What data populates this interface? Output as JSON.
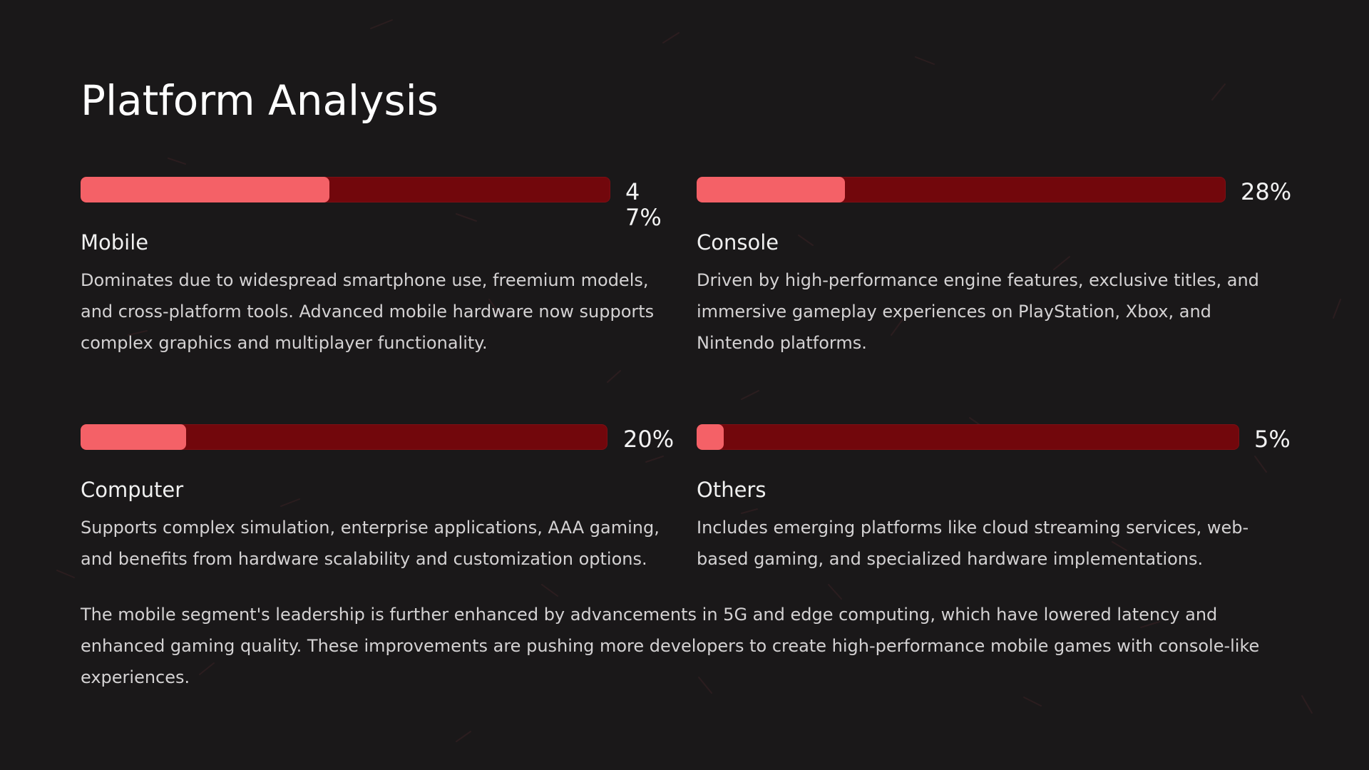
{
  "title": "Platform Analysis",
  "colors": {
    "background": "#1a1819",
    "bar_track": "#72070c",
    "bar_fill": "#f46167",
    "text_primary": "#ffffff",
    "text_secondary": "#d4d2d3"
  },
  "platforms": [
    {
      "name": "Mobile",
      "percent_label": "47%",
      "share": 0.47,
      "description": "Dominates due to widespread smartphone use, freemium models, and cross-platform tools. Advanced mobile hardware now supports complex graphics and multiplayer functionality."
    },
    {
      "name": "Console",
      "percent_label": "28%",
      "share": 0.28,
      "description": "Driven by high-performance engine features, exclusive titles, and immersive gameplay experiences on PlayStation, Xbox, and Nintendo platforms."
    },
    {
      "name": "Computer",
      "percent_label": "20%",
      "share": 0.2,
      "description": "Supports complex simulation, enterprise applications, AAA gaming, and benefits from hardware scalability and customization options."
    },
    {
      "name": "Others",
      "percent_label": "5%",
      "share": 0.05,
      "description": "Includes emerging platforms like cloud streaming services, web-based gaming, and specialized hardware implementations."
    }
  ],
  "summary": "The mobile segment's leadership is further enhanced by advancements in 5G and edge computing, which have lowered latency and enhanced gaming quality. These improvements are pushing more developers to create high-performance mobile games with console-like experiences."
}
